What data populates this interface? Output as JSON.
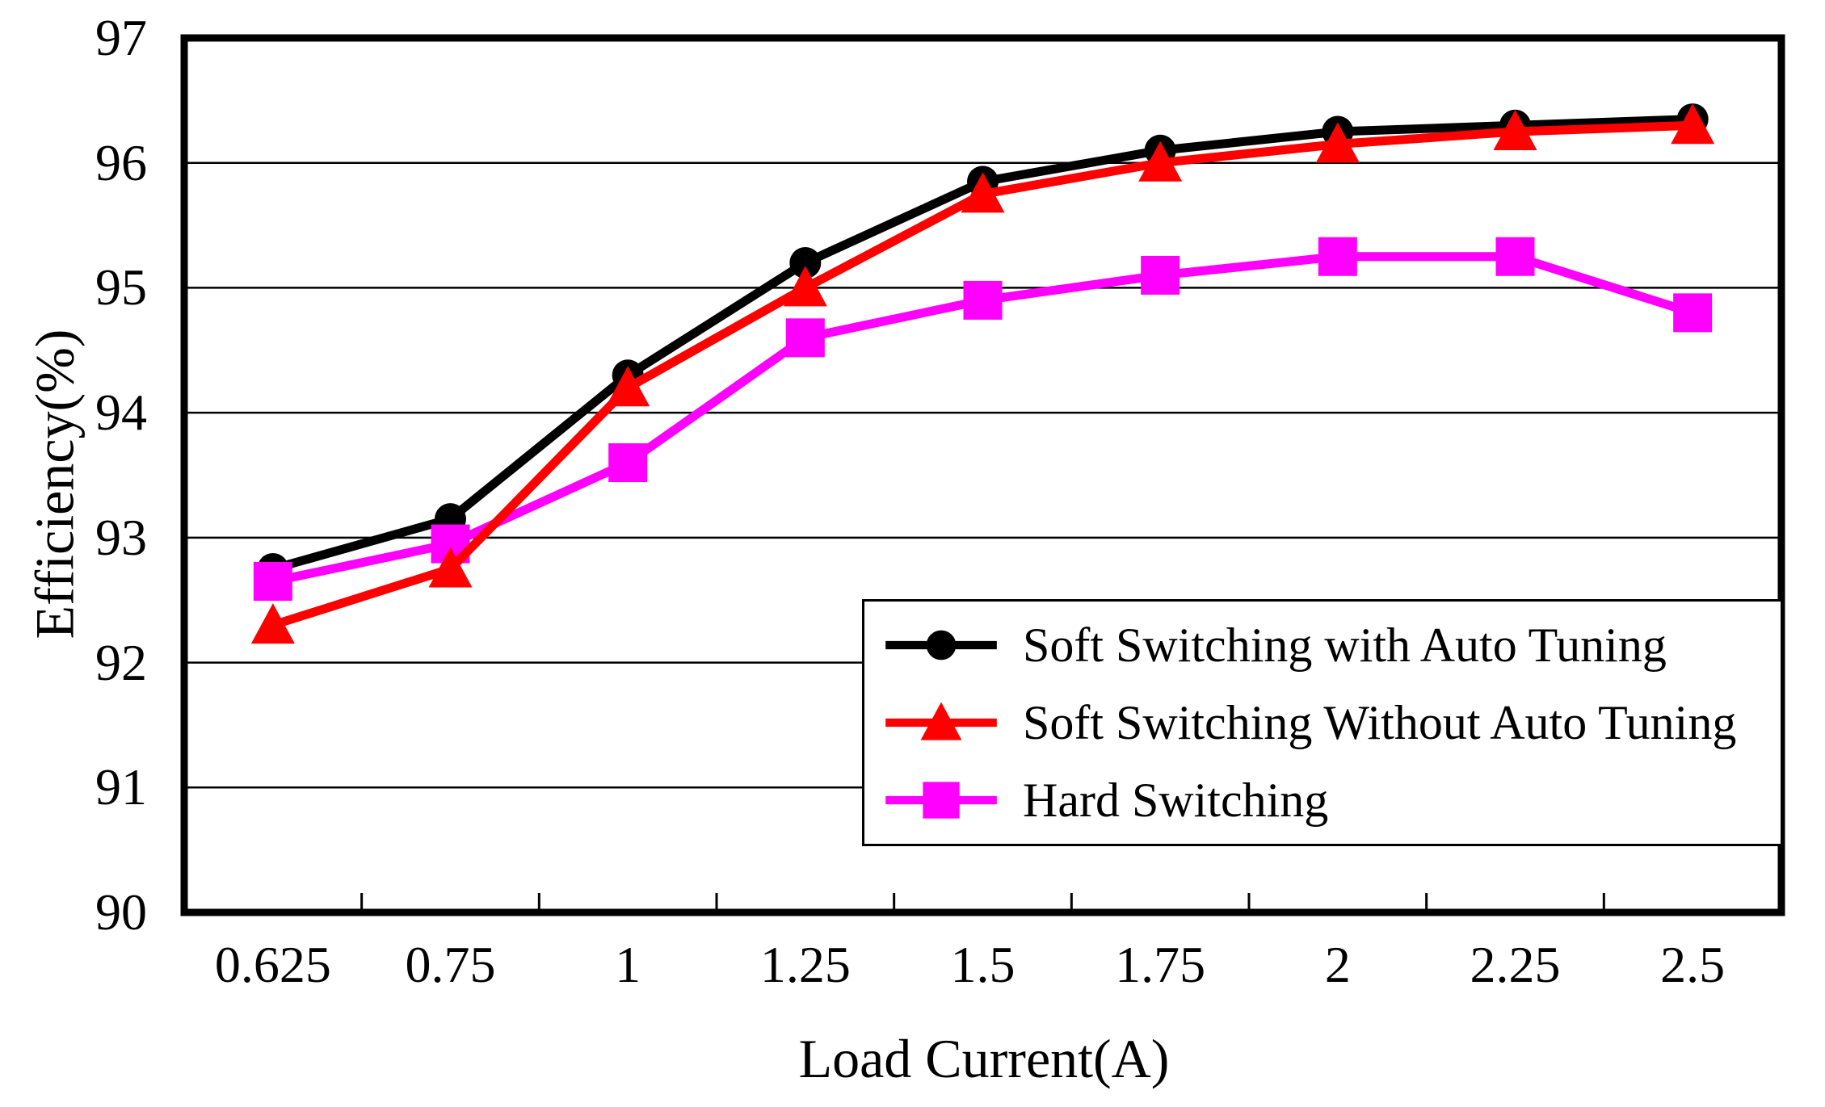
{
  "chart_data": {
    "type": "line",
    "title": "",
    "xlabel": "Load Current(A)",
    "ylabel": "Efficiency(%)",
    "x_categories": [
      "0.625",
      "0.75",
      "1",
      "1.25",
      "1.5",
      "1.75",
      "2",
      "2.25",
      "2.5"
    ],
    "y_ticks": [
      "90",
      "91",
      "92",
      "93",
      "94",
      "95",
      "96",
      "97"
    ],
    "ylim": [
      90,
      97
    ],
    "grid": "horizontal",
    "legend_position": "inside-bottom-right",
    "axis_color": "#000000",
    "background_color": "#ffffff",
    "series": [
      {
        "name": "Soft Switching with Auto Tuning",
        "color": "#000000",
        "marker": "circle",
        "values": [
          92.75,
          93.15,
          94.3,
          95.2,
          95.85,
          96.1,
          96.25,
          96.3,
          96.35
        ]
      },
      {
        "name": "Hard Switching",
        "color": "#ff00ff",
        "marker": "square",
        "values": [
          92.65,
          92.95,
          93.6,
          94.6,
          94.9,
          95.1,
          95.25,
          95.25,
          94.8
        ]
      },
      {
        "name": "Soft Switching Without Auto Tuning",
        "color": "#ff0000",
        "marker": "triangle",
        "values": [
          92.3,
          92.75,
          94.2,
          95.0,
          95.75,
          96.0,
          96.15,
          96.25,
          96.3
        ]
      }
    ],
    "legend_order": [
      0,
      2,
      1
    ]
  }
}
